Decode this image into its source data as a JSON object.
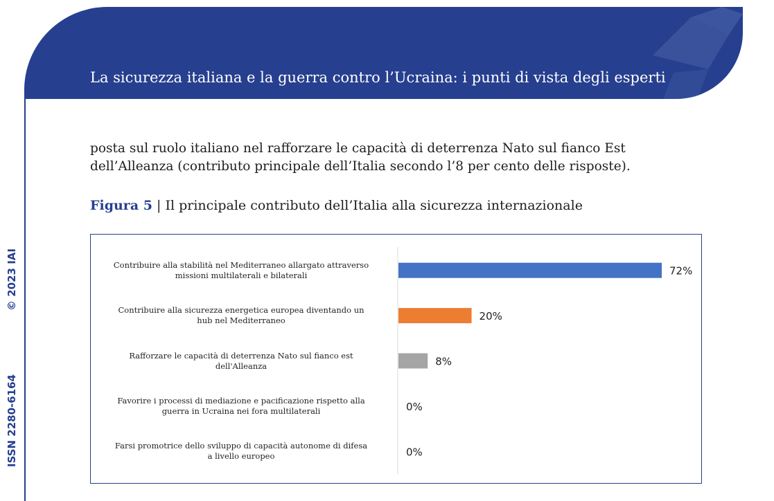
{
  "header": {
    "title": "La sicurezza italiana e la guerra contro l’Ucraina: i punti di vista degli esperti"
  },
  "sidebar": {
    "copyright": "© 2023 IAI",
    "issn": "ISSN 2280-6164"
  },
  "paragraph": {
    "lines": [
      "posta sul ruolo italiano nel rafforzare le capacità di deterrenza Nato sul fianco Est",
      "dell’Alleanza (contributo principale dell’Italia secondo l’8 per cento delle risposte)."
    ]
  },
  "figure": {
    "label": "Figura 5",
    "separator": " | ",
    "caption": "Il principale contributo dell’Italia alla sicurezza internazionale"
  },
  "colors": {
    "brand_blue": "#263f8f",
    "bar_blue": "#4472c4",
    "bar_orange": "#ed7d31",
    "bar_gray": "#a5a5a5"
  },
  "chart_data": {
    "type": "bar",
    "orientation": "horizontal",
    "categories": [
      [
        "Contribuire alla stabilità nel Mediterraneo allargato attraverso",
        "missioni multilaterali e bilaterali"
      ],
      [
        "Contribuire alla sicurezza energetica europea diventando un",
        "hub nel Mediterraneo"
      ],
      [
        "Rafforzare le capacità di deterrenza Nato sul fianco est",
        "dell'Alleanza"
      ],
      [
        "Favorire i processi di mediazione e pacificazione rispetto alla",
        "guerra in Ucraina nei fora multilaterali"
      ],
      [
        "Farsi promotrice dello sviluppo di capacità autonome di difesa",
        "a livello europeo"
      ]
    ],
    "values": [
      72,
      20,
      8,
      0,
      0
    ],
    "value_labels": [
      "72%",
      "20%",
      "8%",
      "0%",
      "0%"
    ],
    "bar_colors": [
      "#4472c4",
      "#ed7d31",
      "#a5a5a5",
      "#ffc000",
      "#5b9bd5"
    ],
    "xlim": [
      0,
      80
    ],
    "grid": false,
    "legend": "none"
  }
}
